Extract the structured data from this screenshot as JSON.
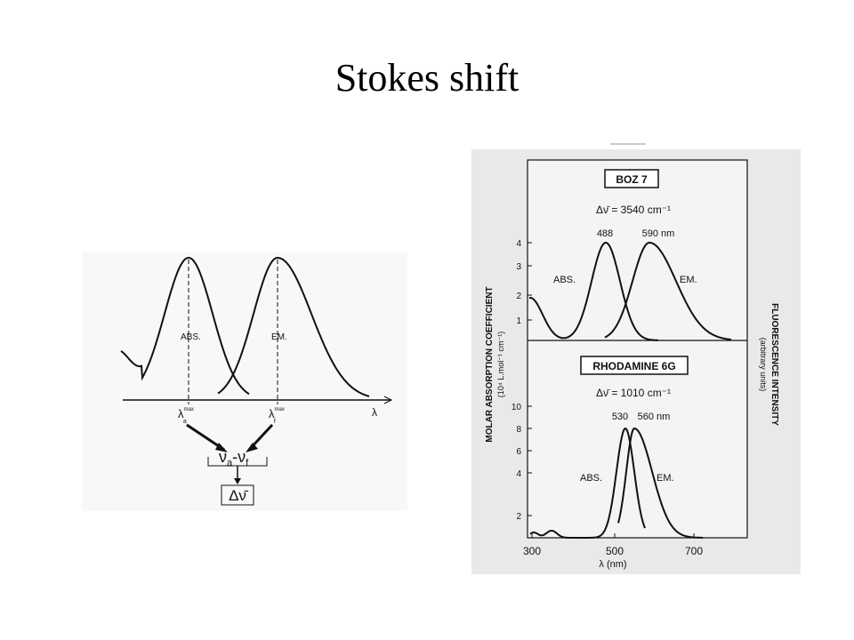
{
  "title": "Stokes shift",
  "left_figure": {
    "abs_label": "ABS.",
    "em_label": "EM.",
    "axis_label": "λ",
    "lambda_a": {
      "symbol": "λ",
      "sup": "max",
      "sub": "a"
    },
    "lambda_f": {
      "symbol": "λ",
      "sup": "max",
      "sub": "f"
    },
    "difference": {
      "nu": "ν",
      "sub_a": "a",
      "minus": "-",
      "sub_f": "f"
    },
    "result": "Δν̄"
  },
  "right_figure": {
    "top_panel": {
      "name": "BOZ 7",
      "shift": "Δν̄ = 3540 cm⁻¹",
      "peak_abs": "488",
      "peak_em": "590 nm",
      "abs_label": "ABS.",
      "em_label": "EM.",
      "yticks": [
        "4",
        "3",
        "2",
        "1"
      ]
    },
    "bottom_panel": {
      "name": "RHODAMINE 6G",
      "shift": "Δν̄ = 1010 cm⁻¹",
      "peak_abs": "530",
      "peak_em": "560 nm",
      "abs_label": "ABS.",
      "em_label": "EM.",
      "yticks": [
        "10",
        "8",
        "6",
        "4",
        "2"
      ]
    },
    "xticks": [
      "300",
      "500",
      "700"
    ],
    "x_label": "λ (nm)",
    "y_label": "MOLAR ABSORPTION COEFFICIENT",
    "y_units": "(10⁴ L.mol⁻¹ cm⁻¹)",
    "y2_label": "FLUORESCENCE INTENSITY",
    "y2_units": "(arbitrary units)"
  }
}
